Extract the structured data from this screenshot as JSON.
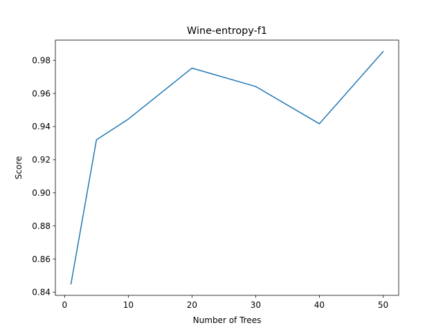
{
  "chart_data": {
    "type": "line",
    "title": "Wine-entropy-f1",
    "xlabel": "Number of Trees",
    "ylabel": "Score",
    "xlim": [
      -1.45,
      52.45
    ],
    "ylim": [
      0.8381,
      0.9922
    ],
    "xticks": [
      0,
      10,
      20,
      30,
      40,
      50
    ],
    "yticks": [
      0.84,
      0.86,
      0.88,
      0.9,
      0.92,
      0.94,
      0.96,
      0.98
    ],
    "ytick_labels": [
      "0.84",
      "0.86",
      "0.88",
      "0.90",
      "0.92",
      "0.94",
      "0.96",
      "0.98"
    ],
    "grid": false,
    "legend": "none",
    "series": [
      {
        "color": "#1f77b4",
        "x": [
          1,
          5,
          10,
          20,
          30,
          40,
          50
        ],
        "y": [
          0.845,
          0.932,
          0.9445,
          0.9753,
          0.9642,
          0.9417,
          0.9853
        ]
      }
    ]
  }
}
